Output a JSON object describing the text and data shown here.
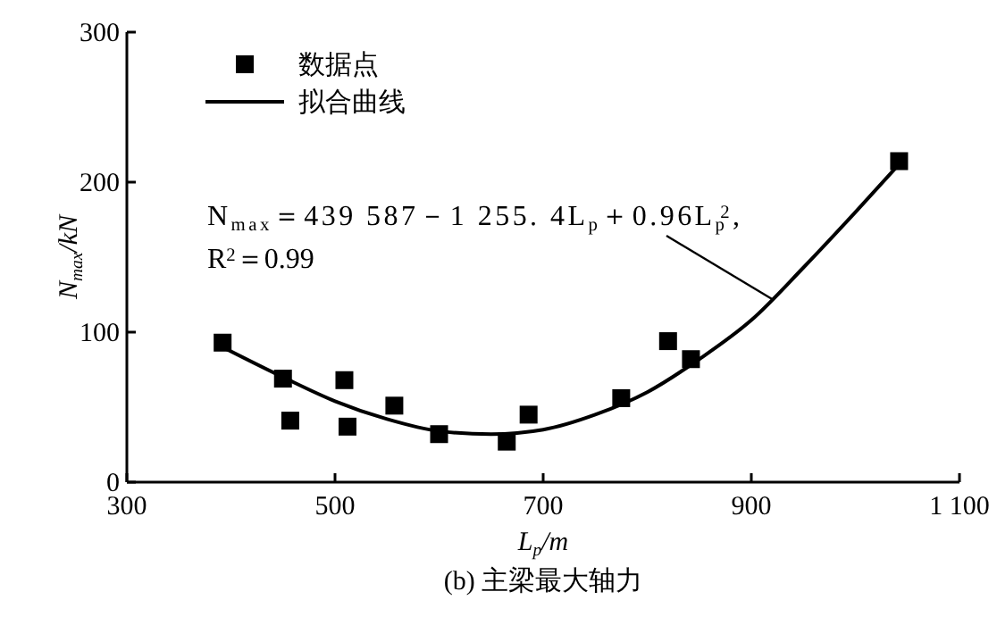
{
  "chart_data": {
    "type": "scatter",
    "xlabel": "L$_{p}$/m",
    "ylabel": "N$_{max}$/kN",
    "xlim": [
      300,
      1100
    ],
    "ylim": [
      0,
      300
    ],
    "xticks": [
      300,
      500,
      700,
      900,
      {
        "value": 1100,
        "label": "1 100"
      }
    ],
    "yticks": [
      0,
      100,
      200,
      300
    ],
    "grid": false,
    "legend": "top left",
    "marker": "square",
    "series": [
      {
        "name": "数据点",
        "type": "scatter",
        "color": "#000000",
        "x": [
          392,
          450,
          457,
          509,
          512,
          557,
          600,
          665,
          686,
          775,
          820,
          842,
          1042
        ],
        "values": [
          93,
          69,
          41,
          68,
          37,
          51,
          32,
          27,
          45,
          56,
          94,
          82,
          214
        ]
      },
      {
        "name": "拟合曲线",
        "type": "line",
        "color": "#000000",
        "marker": "none",
        "line_style": "solid",
        "x": [
          392,
          450,
          500,
          550,
          600,
          650,
          700,
          750,
          800,
          850,
          900,
          950,
          1000,
          1042
        ],
        "values": [
          90,
          70,
          54,
          42,
          34,
          32,
          35,
          45,
          60,
          82,
          108,
          143,
          180,
          212
        ]
      }
    ],
    "annotations": [
      {
        "text": "N$_{max}$＝439 587－1  255. 4L$_{p}$＋0.96L$_{p}$$^{2}$,",
        "x": 920,
        "y": 122
      },
      "R$^{2}$＝0.99",
      "(b)   主梁最大轴力"
    ]
  }
}
